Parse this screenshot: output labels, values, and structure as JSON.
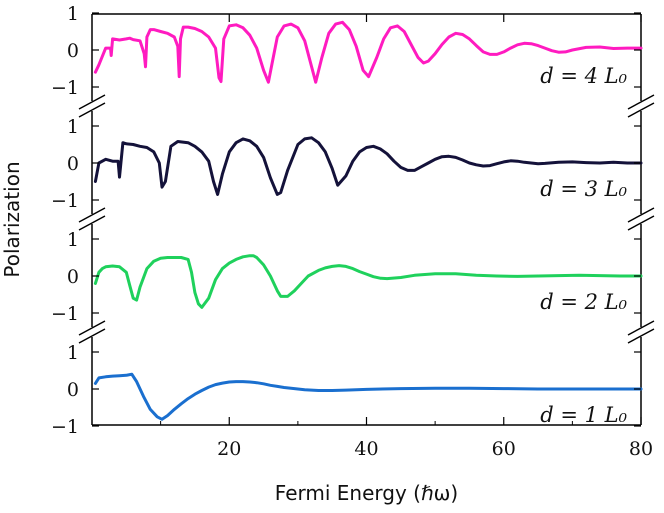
{
  "chart_data": {
    "type": "line",
    "xlabel": "Fermi Energy (ℏω)",
    "ylabel": "Polarization",
    "xlim": [
      0,
      80
    ],
    "x_ticks": [
      "20",
      "40",
      "60",
      "80"
    ],
    "y_ticks": [
      "1",
      "0",
      "−1"
    ],
    "grid": false,
    "panel_ylim": [
      -1,
      1
    ],
    "panels": [
      {
        "label": "d = 4 L₀",
        "color": "#ff1bc0",
        "x": [
          0.5,
          1,
          2,
          2.7,
          2.8,
          3,
          4,
          5,
          5.5,
          6,
          7,
          7.6,
          7.8,
          8,
          8.5,
          9,
          10,
          11,
          12,
          12.5,
          12.7,
          12.9,
          13.3,
          14,
          15,
          16,
          17,
          18,
          18.5,
          18.8,
          19.2,
          20,
          21,
          22,
          23,
          24,
          25,
          25.7,
          26.2,
          27,
          28,
          29,
          30,
          31,
          32,
          32.6,
          33.5,
          34.5,
          35.5,
          36.5,
          37.5,
          38.5,
          39.5,
          40.3,
          41.5,
          42.5,
          43.5,
          44.5,
          45.5,
          46.5,
          47.5,
          48.3,
          49,
          50,
          51,
          52,
          53,
          54,
          55,
          56,
          57,
          58,
          59,
          60,
          61,
          62,
          63,
          64,
          65,
          66,
          67,
          68,
          69,
          70,
          72,
          74,
          76,
          78,
          80
        ],
        "y": [
          -0.6,
          -0.4,
          0.05,
          0.05,
          -0.15,
          0.3,
          0.27,
          0.3,
          0.32,
          0.28,
          0.25,
          -0.1,
          -0.45,
          0.35,
          0.55,
          0.55,
          0.5,
          0.45,
          0.35,
          0.1,
          -0.72,
          0.3,
          0.62,
          0.62,
          0.58,
          0.5,
          0.35,
          0.05,
          -0.75,
          -0.85,
          0.3,
          0.65,
          0.68,
          0.6,
          0.4,
          0.05,
          -0.55,
          -0.87,
          -0.4,
          0.35,
          0.65,
          0.7,
          0.6,
          0.25,
          -0.45,
          -0.87,
          -0.2,
          0.45,
          0.7,
          0.75,
          0.55,
          0.1,
          -0.55,
          -0.72,
          -0.2,
          0.3,
          0.6,
          0.65,
          0.5,
          0.15,
          -0.2,
          -0.35,
          -0.3,
          -0.1,
          0.15,
          0.35,
          0.45,
          0.42,
          0.3,
          0.12,
          -0.05,
          -0.12,
          -0.12,
          -0.05,
          0.05,
          0.14,
          0.18,
          0.17,
          0.12,
          0.05,
          -0.02,
          -0.06,
          -0.05,
          0.0,
          0.07,
          0.08,
          0.04,
          0.05,
          0.05
        ]
      },
      {
        "label": "d = 3 L₀",
        "color": "#14123a",
        "x": [
          0.5,
          1,
          2,
          3,
          3.8,
          4,
          4.5,
          5,
          6,
          7,
          8,
          9,
          9.8,
          10.2,
          10.7,
          11.5,
          12.5,
          14,
          15,
          16,
          17,
          17.7,
          18.3,
          19,
          20,
          21,
          22,
          23,
          24,
          25,
          26,
          27,
          27.5,
          28.5,
          30,
          31,
          32,
          33,
          34,
          35,
          35.8,
          37,
          38,
          39,
          40,
          41,
          42,
          43,
          44,
          45,
          46,
          47,
          48,
          49,
          50,
          51,
          52,
          53,
          54,
          55,
          56,
          57,
          58,
          59,
          60,
          61,
          62,
          63,
          64,
          65,
          66,
          68,
          70,
          72,
          74,
          76,
          78,
          80
        ],
        "y": [
          -0.5,
          0.0,
          0.1,
          0.05,
          0.05,
          -0.38,
          0.55,
          0.52,
          0.5,
          0.45,
          0.42,
          0.3,
          0.0,
          -0.65,
          -0.5,
          0.45,
          0.58,
          0.55,
          0.45,
          0.3,
          0.05,
          -0.5,
          -0.85,
          -0.3,
          0.3,
          0.55,
          0.65,
          0.6,
          0.45,
          0.15,
          -0.4,
          -0.85,
          -0.8,
          -0.2,
          0.5,
          0.65,
          0.68,
          0.55,
          0.3,
          -0.15,
          -0.6,
          -0.35,
          0.05,
          0.3,
          0.42,
          0.45,
          0.38,
          0.25,
          0.05,
          -0.12,
          -0.2,
          -0.2,
          -0.1,
          0.0,
          0.1,
          0.17,
          0.18,
          0.15,
          0.08,
          0.0,
          -0.05,
          -0.08,
          -0.07,
          -0.02,
          0.03,
          0.06,
          0.05,
          0.02,
          0.0,
          -0.02,
          -0.01,
          0.02,
          0.03,
          0.01,
          0.0,
          0.02,
          0.0,
          0.0
        ]
      },
      {
        "label": "d = 2 L₀",
        "color": "#1fd15c",
        "x": [
          0.5,
          1,
          1.5,
          2,
          3,
          4,
          5,
          5.5,
          6,
          6.5,
          7,
          8,
          9,
          10,
          11,
          12,
          13,
          14,
          14.5,
          15,
          15.5,
          16,
          17,
          18,
          19,
          20,
          21,
          22,
          23,
          23.5,
          24,
          25,
          26,
          27,
          27.5,
          28.5,
          29.5,
          30.5,
          31.5,
          33,
          34,
          35,
          36,
          37,
          38,
          39,
          40,
          41,
          42,
          43,
          45,
          47,
          50,
          53,
          56,
          59,
          62,
          65,
          68,
          71,
          74,
          77,
          80
        ],
        "y": [
          -0.2,
          0.1,
          0.2,
          0.25,
          0.27,
          0.25,
          0.1,
          -0.25,
          -0.6,
          -0.65,
          -0.3,
          0.2,
          0.4,
          0.48,
          0.5,
          0.5,
          0.5,
          0.45,
          0.1,
          -0.45,
          -0.75,
          -0.85,
          -0.6,
          -0.1,
          0.2,
          0.35,
          0.45,
          0.52,
          0.55,
          0.55,
          0.5,
          0.3,
          0.0,
          -0.4,
          -0.55,
          -0.55,
          -0.4,
          -0.2,
          0.0,
          0.15,
          0.22,
          0.26,
          0.28,
          0.26,
          0.2,
          0.12,
          0.05,
          -0.02,
          -0.06,
          -0.07,
          -0.04,
          0.02,
          0.06,
          0.06,
          0.02,
          0.0,
          -0.01,
          0.0,
          0.01,
          0.02,
          0.01,
          0.0,
          0.0
        ]
      },
      {
        "label": "d = 1 L₀",
        "color": "#1a6fcf",
        "x": [
          0.5,
          1,
          2,
          3,
          4,
          5,
          5.8,
          6.5,
          7.5,
          8.5,
          9.5,
          10.2,
          11,
          12,
          13,
          14,
          15,
          16,
          17,
          18,
          19,
          20,
          21,
          22,
          23,
          24,
          25,
          26,
          27,
          28,
          29,
          30,
          31,
          32,
          33,
          35,
          37,
          40,
          45,
          50,
          55,
          60,
          65,
          70,
          75,
          80
        ],
        "y": [
          0.15,
          0.3,
          0.33,
          0.35,
          0.36,
          0.37,
          0.4,
          0.2,
          -0.2,
          -0.55,
          -0.75,
          -0.82,
          -0.72,
          -0.55,
          -0.4,
          -0.26,
          -0.14,
          -0.04,
          0.05,
          0.12,
          0.16,
          0.19,
          0.2,
          0.2,
          0.19,
          0.17,
          0.14,
          0.1,
          0.07,
          0.04,
          0.02,
          0.0,
          -0.02,
          -0.03,
          -0.04,
          -0.04,
          -0.03,
          -0.01,
          0.01,
          0.02,
          0.02,
          0.01,
          0.0,
          0.0,
          0.0,
          0.0
        ]
      }
    ]
  }
}
